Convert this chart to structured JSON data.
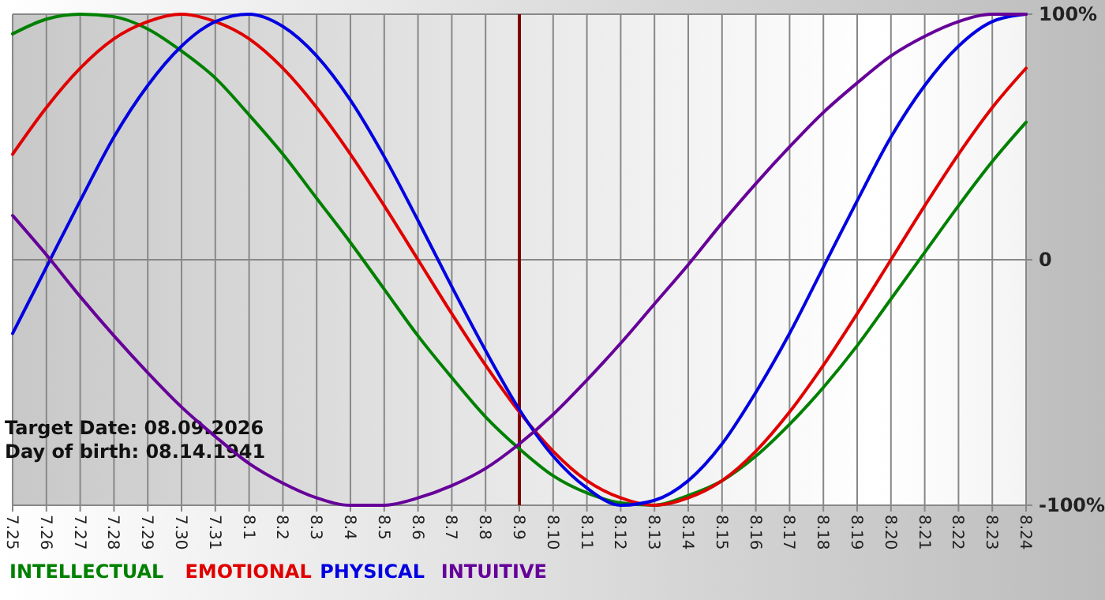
{
  "chart_data": {
    "type": "line",
    "categories": [
      "7.25",
      "7.26",
      "7.27",
      "7.28",
      "7.29",
      "7.30",
      "7.31",
      "8.1",
      "8.2",
      "8.3",
      "8.4",
      "8.5",
      "8.6",
      "8.7",
      "8.8",
      "8.9",
      "8.10",
      "8.11",
      "8.12",
      "8.13",
      "8.14",
      "8.15",
      "8.16",
      "8.17",
      "8.18",
      "8.19",
      "8.20",
      "8.21",
      "8.22",
      "8.23",
      "8.24"
    ],
    "series": [
      {
        "name": "INTELLECTUAL",
        "color": "#008000",
        "values": [
          92,
          98,
          100,
          99,
          94,
          85,
          74,
          59,
          43,
          25,
          7,
          -12,
          -31,
          -48,
          -64,
          -77,
          -88,
          -95,
          -99,
          -100,
          -96,
          -90,
          -80,
          -67,
          -52,
          -35,
          -16,
          3,
          22,
          40,
          56
        ]
      },
      {
        "name": "EMOTIONAL",
        "color": "#e00000",
        "values": [
          43,
          62,
          78,
          90,
          97,
          100,
          97,
          90,
          78,
          62,
          43,
          22,
          0,
          -22,
          -43,
          -62,
          -78,
          -90,
          -97,
          -100,
          -97,
          -90,
          -78,
          -62,
          -43,
          -22,
          0,
          22,
          43,
          62,
          78
        ]
      },
      {
        "name": "PHYSICAL",
        "color": "#0000e0",
        "values": [
          -30,
          -3,
          24,
          50,
          71,
          87,
          97,
          100,
          95,
          83,
          65,
          42,
          16,
          -11,
          -37,
          -61,
          -80,
          -93,
          -100,
          -98,
          -90,
          -75,
          -54,
          -30,
          -3,
          24,
          50,
          71,
          87,
          97,
          100
        ]
      },
      {
        "name": "INTUITIVE",
        "color": "#660099",
        "values": [
          18,
          2,
          -15,
          -31,
          -46,
          -60,
          -72,
          -83,
          -91,
          -97,
          -100,
          -100,
          -97,
          -92,
          -85,
          -75,
          -63,
          -49,
          -34,
          -18,
          -2,
          15,
          31,
          46,
          60,
          72,
          83,
          91,
          97,
          100,
          100
        ]
      }
    ],
    "ylim": [
      -100,
      100
    ],
    "yticks": [
      {
        "value": 100,
        "label": "100%"
      },
      0,
      {
        "value": -100,
        "label": "-100%"
      }
    ],
    "grid": true,
    "legend": "bottom left",
    "marker": "none",
    "line_style": "solid",
    "ref_lines": [
      {
        "axis": "x",
        "value": "8.9",
        "color": "#800000"
      }
    ],
    "annotations": [
      "Target Date: 08.09.2026",
      "Day of birth: 08.14.1941"
    ]
  }
}
